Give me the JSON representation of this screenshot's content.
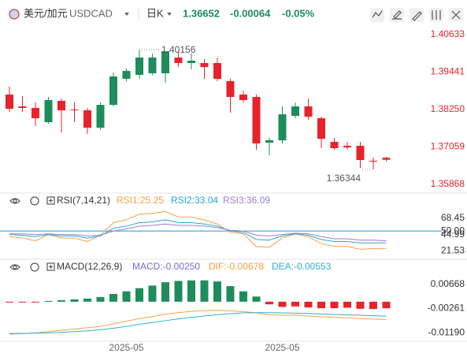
{
  "header": {
    "symbol_name": "美元/加元",
    "symbol": "USDCAD",
    "period": "日K",
    "price": "1.36652",
    "change": "-0.00064",
    "change_pct": "-0.05%",
    "quote_color": "#1e8c5b"
  },
  "chart_data": [
    {
      "type": "candlestick",
      "categories": [
        null,
        null,
        null,
        null,
        null,
        null,
        null,
        null,
        null,
        "2025-05",
        null,
        null,
        null,
        null,
        null,
        null,
        null,
        null,
        null,
        null,
        null,
        "2025-05",
        null,
        null,
        null,
        null,
        null,
        null,
        null,
        null
      ],
      "open": [
        1.38726,
        1.3835,
        1.383,
        1.37849,
        1.38526,
        1.3825,
        1.38225,
        1.37673,
        1.384,
        1.39228,
        1.39353,
        1.39404,
        1.39404,
        1.39905,
        1.3973,
        1.3973,
        1.3973,
        1.39153,
        1.38726,
        1.38651,
        1.37197,
        1.37272,
        1.38049,
        1.3835,
        1.37974,
        1.37222,
        1.37096,
        1.37096,
        1.3662,
        1.36716
      ],
      "high": [
        1.38977,
        1.38676,
        1.38476,
        1.38651,
        1.38601,
        1.38476,
        1.383,
        1.38476,
        1.39429,
        1.39554,
        1.40156,
        1.40031,
        1.40106,
        1.40106,
        1.40031,
        1.39855,
        1.39905,
        1.39228,
        1.38852,
        1.38726,
        1.37347,
        1.3835,
        1.38476,
        1.38601,
        1.38024,
        1.37347,
        1.37222,
        1.37222,
        1.3672,
        1.3674
      ],
      "low": [
        1.38175,
        1.38175,
        1.37723,
        1.37799,
        1.37523,
        1.37849,
        1.37472,
        1.37598,
        1.3835,
        1.39153,
        1.39228,
        1.39353,
        1.39103,
        1.39604,
        1.39529,
        1.39228,
        1.39153,
        1.3815,
        1.38476,
        1.36971,
        1.36795,
        1.37172,
        1.37974,
        1.37924,
        1.37021,
        1.36971,
        1.36971,
        1.36394,
        1.36344,
        1.366
      ],
      "close": [
        1.38275,
        1.383,
        1.37974,
        1.38551,
        1.38225,
        1.38225,
        1.37673,
        1.384,
        1.39303,
        1.39479,
        1.39905,
        1.39905,
        1.40106,
        1.3973,
        1.39805,
        1.39604,
        1.39228,
        1.38651,
        1.38551,
        1.37172,
        1.37272,
        1.38099,
        1.3835,
        1.38024,
        1.37322,
        1.37021,
        1.37046,
        1.36645,
        1.366,
        1.36652
      ],
      "up_color": "#1e8c5b",
      "down_color": "#e8222b",
      "tick_color": "#e8222b",
      "ylim": [
        1.35667,
        1.40984
      ],
      "yticks": [
        1.35868,
        1.37059,
        {
          "value": 1.3825,
          "label": "1.38250"
        },
        1.39441,
        1.40633
      ]
    },
    {
      "type": "line",
      "title": "RSI(7,14,21)",
      "series": [
        {
          "name": "RSI1:25.25",
          "color": "#f5a142",
          "values": [
            42,
            40,
            36,
            45,
            40,
            40,
            35,
            44,
            62,
            66,
            74,
            75,
            78,
            70,
            70,
            66,
            60,
            48,
            46,
            28,
            27,
            40,
            46,
            42,
            32,
            28,
            28,
            24,
            25,
            25.25
          ]
        },
        {
          "name": "RSI2:33.04",
          "color": "#2aa7c9",
          "values": [
            45,
            44,
            42,
            45,
            43,
            43,
            40,
            43,
            54,
            57,
            62,
            63,
            66,
            62,
            62,
            60,
            57,
            50,
            48,
            38,
            37,
            43,
            46,
            44,
            38,
            35,
            35,
            33,
            33,
            33.04
          ]
        },
        {
          "name": "RSI3:36.09",
          "color": "#9b7fd6",
          "values": [
            46,
            46,
            45,
            46,
            45,
            45,
            43,
            44,
            50,
            53,
            57,
            58,
            60,
            58,
            58,
            57,
            55,
            51,
            50,
            44,
            43,
            45,
            47,
            46,
            42,
            39,
            39,
            37,
            37,
            36.09
          ]
        }
      ],
      "level_line": {
        "value": 50,
        "color": "#1e9bd7"
      },
      "tick_color": "#333",
      "ylim": [
        12,
        85
      ],
      "yticks": [
        21.53,
        44.99,
        {
          "value": 50,
          "label": "50.00"
        },
        68.45
      ]
    },
    {
      "type": "macd",
      "title": "MACD(12,26,9)",
      "series": [
        {
          "name": "MACD:-0.00250",
          "color": "#7b68d8",
          "up_color": "#1e8c5b",
          "down_color": "#e8222b",
          "values": [
            -0.0003,
            -0.0002,
            -0.0001,
            0.0003,
            0.0006,
            0.0009,
            0.0012,
            0.0018,
            0.003,
            0.004,
            0.0052,
            0.0062,
            0.0075,
            0.008,
            0.0082,
            0.0082,
            0.0078,
            0.006,
            0.004,
            0.002,
            -0.001,
            -0.002,
            -0.0018,
            -0.0022,
            -0.0025,
            -0.0025,
            -0.0023,
            -0.0027,
            -0.0028,
            -0.0025
          ]
        },
        {
          "name": "DIF:-0.00678",
          "color": "#f5a142",
          "values": [
            -0.0125,
            -0.0123,
            -0.012,
            -0.0115,
            -0.011,
            -0.0105,
            -0.01,
            -0.0095,
            -0.0085,
            -0.0075,
            -0.0065,
            -0.0057,
            -0.0048,
            -0.0042,
            -0.0037,
            -0.0034,
            -0.0033,
            -0.0035,
            -0.0038,
            -0.0043,
            -0.005,
            -0.0052,
            -0.0052,
            -0.0055,
            -0.0058,
            -0.006,
            -0.0062,
            -0.0065,
            -0.0067,
            -0.00678
          ]
        },
        {
          "name": "DEA:-0.00553",
          "color": "#2ab3c9",
          "values": [
            -0.0122,
            -0.0122,
            -0.0121,
            -0.012,
            -0.0118,
            -0.0115,
            -0.0112,
            -0.0108,
            -0.0102,
            -0.0095,
            -0.0087,
            -0.008,
            -0.0073,
            -0.0066,
            -0.006,
            -0.0055,
            -0.005,
            -0.0046,
            -0.0043,
            -0.0042,
            -0.0042,
            -0.0043,
            -0.0044,
            -0.0045,
            -0.0047,
            -0.0049,
            -0.0051,
            -0.0052,
            -0.0054,
            -0.00553
          ]
        }
      ],
      "tick_color": "#333",
      "ylim": [
        -0.0149,
        0.0136
      ],
      "yticks": [
        {
          "value": -0.0119,
          "label": "-0.01190"
        },
        -0.00261,
        0.00668
      ]
    }
  ]
}
